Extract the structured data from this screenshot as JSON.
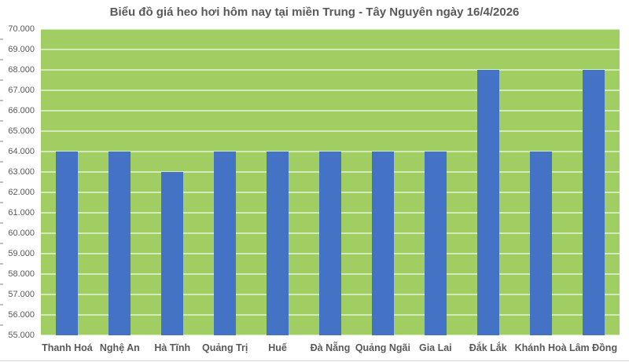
{
  "chart_data": {
    "type": "bar",
    "title": "Biểu đồ giá heo hơi hôm nay tại miền Trung - Tây Nguyên ngày 16/4/2026",
    "categories": [
      "Thanh Hoá",
      "Nghệ An",
      "Hà Tĩnh",
      "Quảng Trị",
      "Huế",
      "Đà Nẵng",
      "Quảng Ngãi",
      "Gia Lai",
      "Đắk Lắk",
      "Khánh Hoà",
      "Lâm Đồng"
    ],
    "values": [
      64000,
      64000,
      63000,
      64000,
      64000,
      64000,
      64000,
      64000,
      68000,
      64000,
      68000
    ],
    "xlabel": "",
    "ylabel": "",
    "ylim": [
      55000,
      70000
    ],
    "ytick_step": 1000,
    "ytick_labels": [
      "70.000",
      "69.000",
      "68.000",
      "67.000",
      "66.000",
      "65.000",
      "64.000",
      "63.000",
      "62.000",
      "61.000",
      "60.000",
      "59.000",
      "58.000",
      "57.000",
      "56.000",
      "55.000"
    ],
    "grid": true,
    "legend": "none",
    "colors": {
      "bar": "#4472C4",
      "plot_background": "#A0CE63",
      "gridline": "rgba(255,255,255,0.55)",
      "title_text": "#595959",
      "axis_text": "#595959",
      "tick_mark": "#bfbfbf",
      "chart_border": "#d9d9d9",
      "page_background": "#ffffff"
    }
  }
}
